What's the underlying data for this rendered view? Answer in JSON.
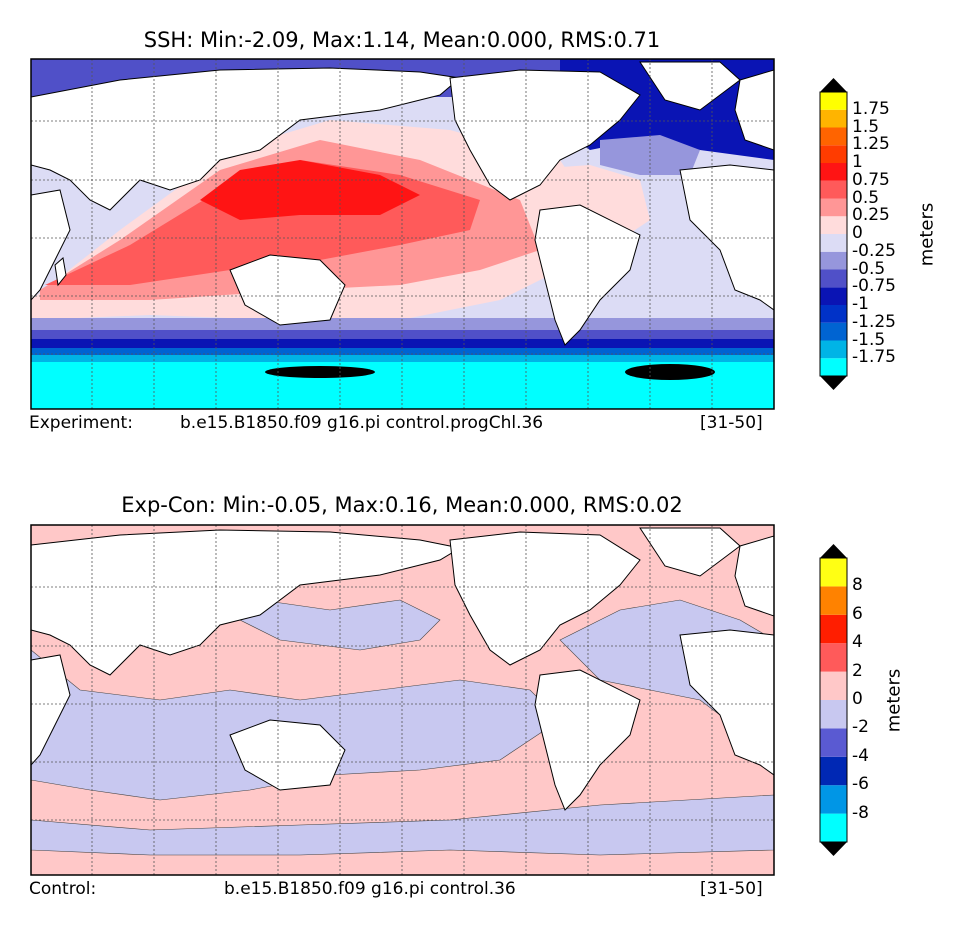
{
  "chart_data": [
    {
      "type": "heatmap",
      "title": "SSH: Min:-2.09, Max:1.14, Mean:0.000, RMS:0.71",
      "colorbar_label": "meters",
      "colorbar_ticks": [
        "1.75",
        "1.5",
        "1.25",
        "1",
        "0.75",
        "0.5",
        "0.25",
        "0",
        "-0.25",
        "-0.5",
        "-0.75",
        "-1",
        "-1.25",
        "-1.5",
        "-1.75"
      ],
      "colorbar_colors": [
        "#00ffff",
        "#00b4e6",
        "#0064d2",
        "#0032c8",
        "#0a14b4",
        "#5050c8",
        "#9696dc",
        "#dcdcf5",
        "#ffdcdc",
        "#ff9696",
        "#ff5a5a",
        "#ff1414",
        "#ff3c00",
        "#ff6400",
        "#ffb400",
        "#ffff00"
      ],
      "stats": {
        "min": -2.09,
        "max": 1.14,
        "mean": 0.0,
        "rms": 0.71
      },
      "footer": {
        "label": "Experiment:",
        "case": "b.e15.B1850.f09 g16.pi control.progChl.36",
        "years": "[31-50]"
      }
    },
    {
      "type": "heatmap",
      "title": "Exp-Con: Min:-0.05, Max:0.16, Mean:0.000, RMS:0.02",
      "colorbar_label": "meters",
      "colorbar_ticks": [
        "8",
        "6",
        "4",
        "2",
        "0",
        "-2",
        "-4",
        "-6",
        "-8"
      ],
      "colorbar_colors": [
        "#00ffff",
        "#0096e6",
        "#0028b4",
        "#5a5ad2",
        "#c8c8f0",
        "#ffc8c8",
        "#ff5a5a",
        "#ff1e00",
        "#ff8200",
        "#ffff14"
      ],
      "stats": {
        "min": -0.05,
        "max": 0.16,
        "mean": 0.0,
        "rms": 0.02
      },
      "footer": {
        "label": "Control:",
        "case": "b.e15.B1850.f09 g16.pi control.36",
        "years": "[31-50]"
      }
    }
  ]
}
